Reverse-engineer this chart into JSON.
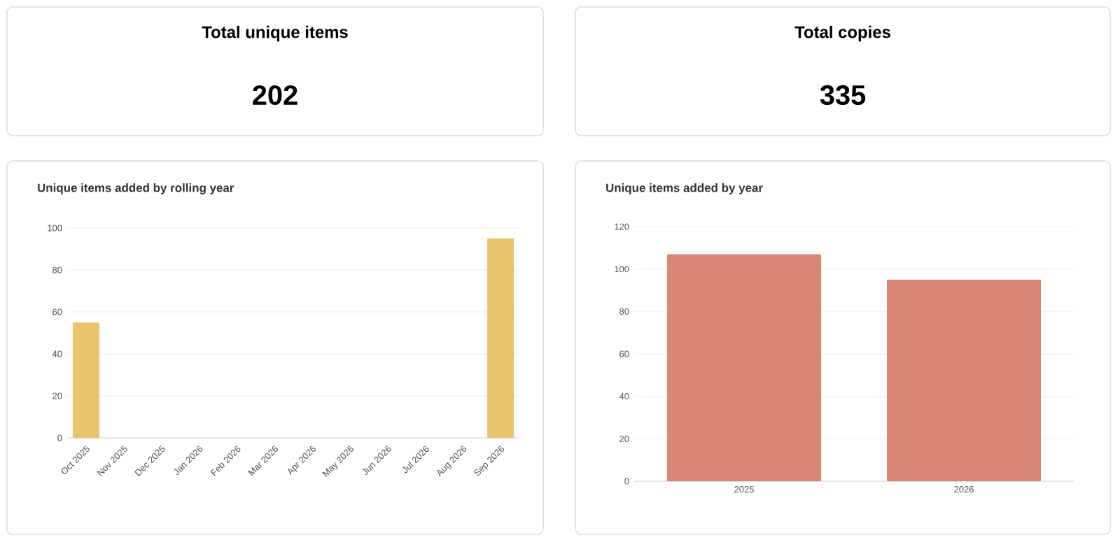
{
  "chart_data": [
    {
      "type": "other",
      "title": "Total unique items",
      "annotations": [
        "202"
      ]
    },
    {
      "type": "other",
      "title": "Total copies",
      "annotations": [
        "335"
      ]
    },
    {
      "type": "bar",
      "title": "Unique items added by rolling year",
      "categories": [
        "Oct 2025",
        "Nov 2025",
        "Dec 2025",
        "Jan 2026",
        "Feb 2026",
        "Mar 2026",
        "Apr 2026",
        "May 2026",
        "Jun 2026",
        "Jul 2026",
        "Aug 2026",
        "Sep 2026"
      ],
      "values": [
        55,
        0,
        0,
        0,
        0,
        0,
        0,
        0,
        0,
        0,
        0,
        95
      ],
      "color": "#eac36e",
      "ylim": [
        0,
        100
      ],
      "yticks": [
        0,
        20,
        40,
        60,
        80,
        100
      ],
      "grid": "y"
    },
    {
      "type": "bar",
      "title": "Unique items added by year",
      "categories": [
        "2025",
        "2026"
      ],
      "values": [
        107,
        95
      ],
      "color": "#d98676",
      "ylim": [
        0,
        120
      ],
      "yticks": [
        0,
        20,
        40,
        60,
        80,
        100,
        120
      ],
      "grid": "y"
    }
  ]
}
